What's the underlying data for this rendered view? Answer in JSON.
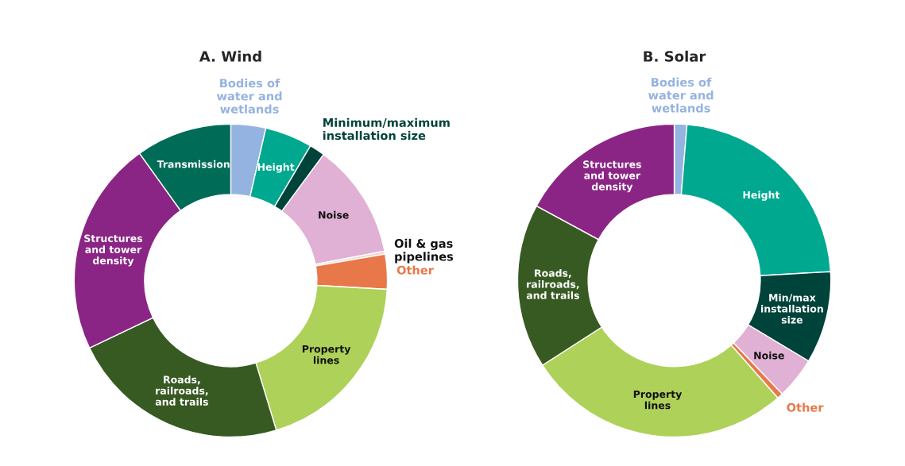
{
  "chart_data": [
    {
      "type": "donut",
      "title": "A. Wind",
      "categories": [
        "Bodies of\nwater and\nwetlands",
        "Height",
        "Minimum/maximum\ninstallation size",
        "Noise",
        "Oil & gas\npipelines",
        "Other",
        "Property\nlines",
        "Roads,\nrailroads,\nand trails",
        "Structures\nand tower\ndensity",
        "Transmission"
      ],
      "values": [
        3.6,
        4.9,
        1.6,
        11.9,
        0.3,
        3.6,
        19.4,
        22.6,
        22.2,
        9.9
      ],
      "colors": [
        "#95b3e0",
        "#00a88f",
        "#00433a",
        "#e0b0d5",
        "#f2d6cf",
        "#e8784a",
        "#aed159",
        "#375a22",
        "#8b2585",
        "#006b56"
      ]
    },
    {
      "type": "donut",
      "title": "B. Solar",
      "categories": [
        "Bodies of\nwater and\nwetlands",
        "Height",
        "Min/max\ninstallation\nsize",
        "Noise",
        "Other",
        "Property\nlines",
        "Roads,\nrailroads,\nand trails",
        "Structures\nand tower\ndensity"
      ],
      "values": [
        1.3,
        22.8,
        9.5,
        4.3,
        0.6,
        27.4,
        17.0,
        17.1
      ],
      "colors": [
        "#95b3e0",
        "#00a88f",
        "#00433a",
        "#e0b0d5",
        "#e8784a",
        "#aed159",
        "#375a22",
        "#8b2585"
      ]
    }
  ]
}
